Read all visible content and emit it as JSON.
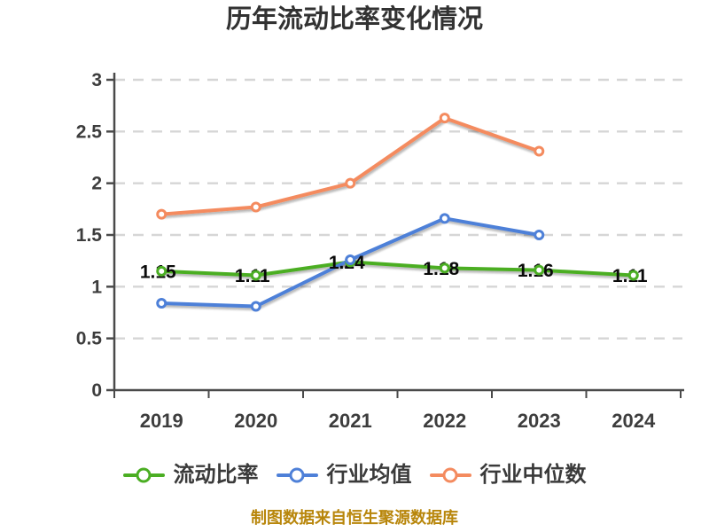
{
  "title": "历年流动比率变化情况",
  "footer": "制图数据来自恒生聚源数据库",
  "colors": {
    "grid": "#d6d6d6",
    "axis": "#4a4a4a",
    "tick_label": "#3d3d3d",
    "data_label": "#0a0a0a",
    "footer_text": "#b8860b",
    "background": "#ffffff"
  },
  "chart_data": {
    "type": "line",
    "title": "历年流动比率变化情况",
    "categories": [
      "2019",
      "2020",
      "2021",
      "2022",
      "2023",
      "2024"
    ],
    "series": [
      {
        "id": "current-ratio",
        "name": "流动比率",
        "color": "#4bae23",
        "values": [
          1.15,
          1.11,
          1.24,
          1.18,
          1.16,
          1.11
        ],
        "labels_shown": true
      },
      {
        "id": "industry-average",
        "name": "行业均值",
        "color": "#4e80d8",
        "values": [
          0.84,
          0.81,
          1.26,
          1.66,
          1.5,
          null
        ],
        "labels_shown": false
      },
      {
        "id": "industry-median",
        "name": "行业中位数",
        "color": "#f48b5f",
        "values": [
          1.7,
          1.77,
          2.0,
          2.63,
          2.31,
          null
        ],
        "labels_shown": false
      }
    ],
    "xlabel": "",
    "ylabel": "",
    "ylim": [
      0,
      3
    ],
    "y_ticks": [
      0,
      0.5,
      1,
      1.5,
      2,
      2.5,
      3
    ],
    "y_tick_labels": [
      "0",
      "0.5",
      "1",
      "1.5",
      "2",
      "2.5",
      "3"
    ],
    "grid": "horizontal-dashed",
    "legend_position": "bottom",
    "marker_style": "white-filled-circle-colored-ring",
    "value_label_format": "2-decimals"
  }
}
